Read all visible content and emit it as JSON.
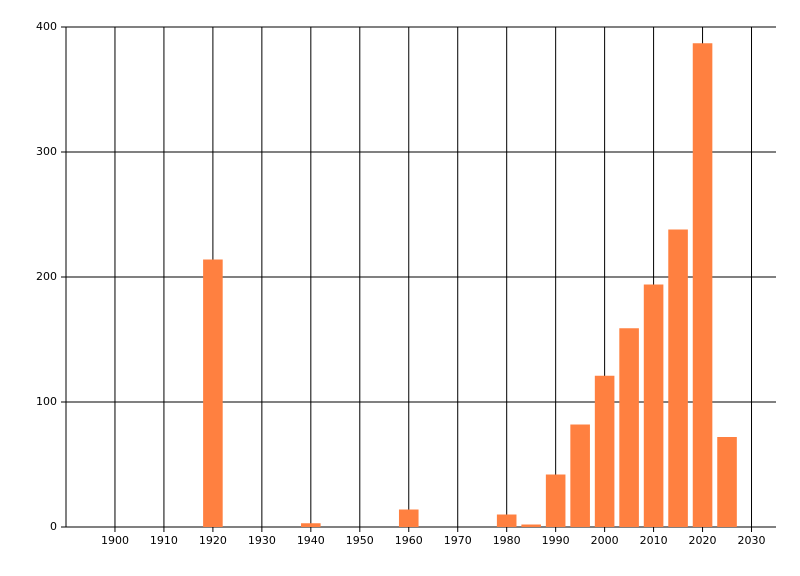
{
  "chart_data": {
    "type": "bar",
    "x": [
      1920,
      1940,
      1960,
      1980,
      1985,
      1990,
      1995,
      2000,
      2005,
      2010,
      2015,
      2020,
      2025
    ],
    "values": [
      214,
      3,
      14,
      10,
      2,
      42,
      82,
      121,
      159,
      194,
      238,
      387,
      72
    ],
    "color": "#ff8040",
    "xlim": [
      1890,
      2035
    ],
    "xticks": [
      1900,
      1910,
      1920,
      1930,
      1940,
      1950,
      1960,
      1970,
      1980,
      1990,
      2000,
      2010,
      2020,
      2030
    ],
    "ylim": [
      0,
      400
    ],
    "yticks": [
      0,
      100,
      200,
      300,
      400
    ],
    "grid": true
  }
}
